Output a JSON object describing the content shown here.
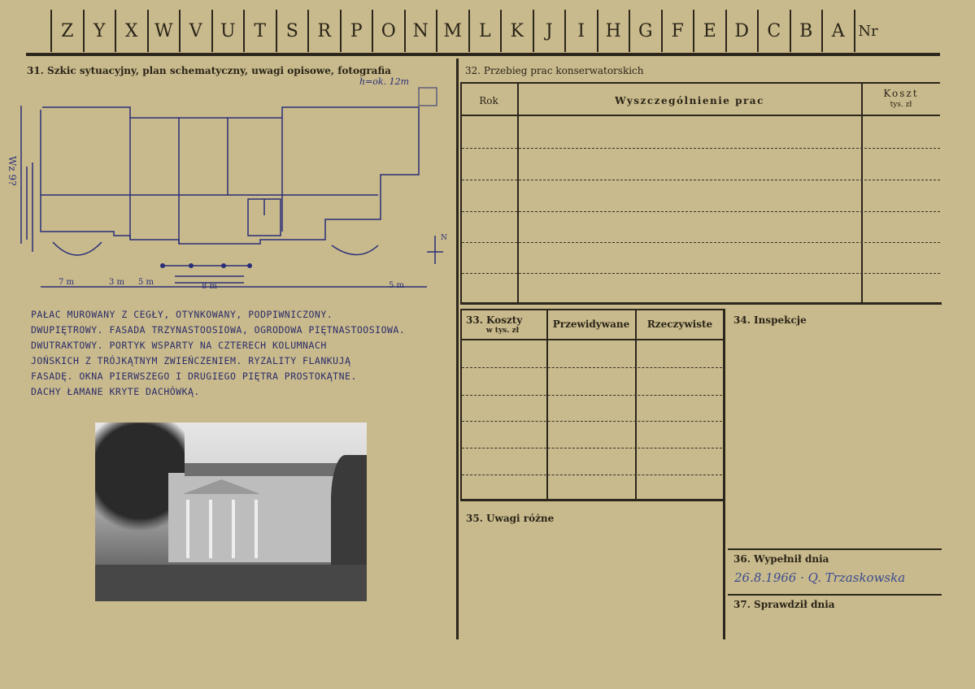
{
  "header": {
    "letters": [
      "Z",
      "Y",
      "X",
      "W",
      "V",
      "U",
      "T",
      "S",
      "R",
      "P",
      "O",
      "N",
      "M",
      "L",
      "K",
      "J",
      "I",
      "H",
      "G",
      "F",
      "E",
      "D",
      "C",
      "B",
      "A",
      "Nr"
    ]
  },
  "section31": {
    "title": "31. Szkic sytuacyjny, plan schematyczny, uwagi opisowe, fotografia",
    "sketch_notes": {
      "height": "h=ok. 12m",
      "side": "Wz 9?",
      "north": "N",
      "scale_left": "7 m",
      "scale_a": "3 m",
      "scale_b": "5 m",
      "scale_c": "8 m",
      "scale_right": "5 m"
    },
    "description": [
      "PAŁAC MUROWANY Z CEGŁY, OTYNKOWANY, PODPIWNICZONY.",
      "DWUPIĘTROWY. FASADA TRZYNASTOOSIOWA, OGRODOWA PIĘTNASTOOSIOWA.",
      "DWUTRAKTOWY. PORTYK WSPARTY NA CZTERECH KOLUMNACH",
      "JOŃSKICH Z TRÓJKĄTNYM ZWIEŃCZENIEM. RYZALITY FLANKUJĄ",
      "FASADĘ. OKNA PIERWSZEGO I DRUGIEGO PIĘTRA PROSTOKĄTNE.",
      "DACHY ŁAMANE KRYTE DACHÓWKĄ."
    ]
  },
  "section32": {
    "title": "32. Przebieg prac konserwatorskich",
    "col_year": "Rok",
    "col_desc": "Wyszczególnienie prac",
    "col_cost": "Koszt",
    "col_cost_unit": "tys. zł"
  },
  "section33": {
    "title": "33. Koszty",
    "unit": "w tys. zł",
    "col_planned": "Przewidywane",
    "col_actual": "Rzeczywiste"
  },
  "section34": {
    "title": "34. Inspekcje"
  },
  "section35": {
    "title": "35. Uwagi różne"
  },
  "section36": {
    "title": "36. Wypełnił dnia",
    "value": "26.8.1966 · Q. Trzaskowska"
  },
  "section37": {
    "title": "37. Sprawdził dnia"
  }
}
